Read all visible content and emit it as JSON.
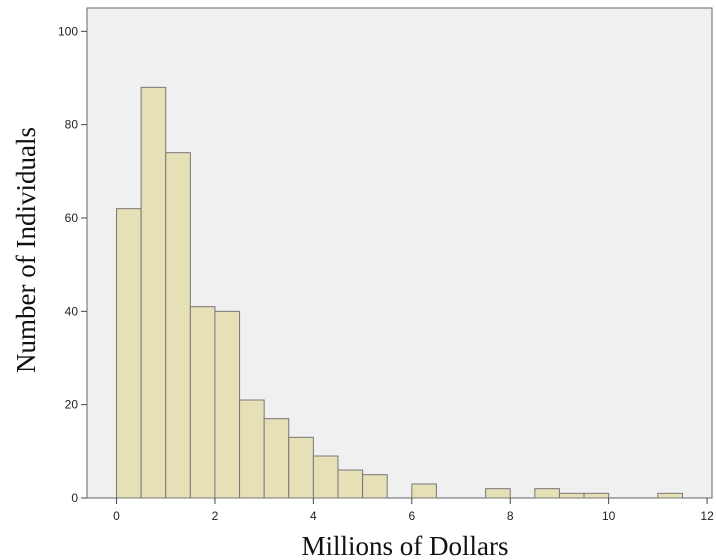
{
  "chart_data": {
    "type": "bar",
    "subtype": "histogram",
    "xlabel": "Millions of Dollars",
    "ylabel": "Number of Individuals",
    "xlim": [
      -0.6,
      12.1
    ],
    "ylim": [
      0,
      105
    ],
    "xticks": [
      0,
      2,
      4,
      6,
      8,
      10,
      12
    ],
    "yticks": [
      0,
      20,
      40,
      60,
      80,
      100
    ],
    "bin_width": 0.5,
    "bins": [
      {
        "start": 0.0,
        "end": 0.5,
        "count": 62
      },
      {
        "start": 0.5,
        "end": 1.0,
        "count": 88
      },
      {
        "start": 1.0,
        "end": 1.5,
        "count": 74
      },
      {
        "start": 1.5,
        "end": 2.0,
        "count": 41
      },
      {
        "start": 2.0,
        "end": 2.5,
        "count": 40
      },
      {
        "start": 2.5,
        "end": 3.0,
        "count": 21
      },
      {
        "start": 3.0,
        "end": 3.5,
        "count": 17
      },
      {
        "start": 3.5,
        "end": 4.0,
        "count": 13
      },
      {
        "start": 4.0,
        "end": 4.5,
        "count": 9
      },
      {
        "start": 4.5,
        "end": 5.0,
        "count": 6
      },
      {
        "start": 5.0,
        "end": 5.5,
        "count": 5
      },
      {
        "start": 6.0,
        "end": 6.5,
        "count": 3
      },
      {
        "start": 7.5,
        "end": 8.0,
        "count": 2
      },
      {
        "start": 8.5,
        "end": 9.0,
        "count": 2
      },
      {
        "start": 9.0,
        "end": 9.5,
        "count": 1
      },
      {
        "start": 9.5,
        "end": 10.0,
        "count": 1
      },
      {
        "start": 11.0,
        "end": 11.5,
        "count": 1
      }
    ],
    "grid": false,
    "legend": "none",
    "colors": {
      "bar_fill": "#e6e0b6",
      "bar_stroke": "#777777",
      "plot_background": "#f0f0f0",
      "frame": "#666666"
    }
  }
}
